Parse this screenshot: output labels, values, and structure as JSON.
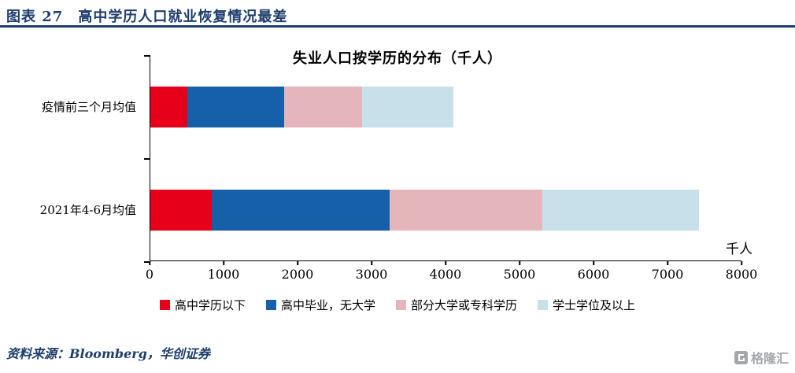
{
  "header": {
    "title": "图表 27　高中学历人口就业恢复情况最差"
  },
  "chart": {
    "title": "失业人口按学历的分布（千人）",
    "unit_label": "千人"
  },
  "chart_data": {
    "type": "bar",
    "orientation": "horizontal",
    "stacked": true,
    "title": "失业人口按学历的分布（千人）",
    "xlabel": "千人",
    "xlim": [
      0,
      8000
    ],
    "xticks": [
      0,
      1000,
      2000,
      3000,
      4000,
      5000,
      6000,
      7000,
      8000
    ],
    "grid": false,
    "legend_position": "bottom",
    "categories": [
      "疫情前三个月均值",
      "2021年4-6月均值"
    ],
    "series": [
      {
        "name": "高中学历以下",
        "color": "#e60019",
        "values": [
          500,
          830
        ]
      },
      {
        "name": "高中毕业，无大学",
        "color": "#1560a8",
        "values": [
          1310,
          2410
        ]
      },
      {
        "name": "部分大学或专科学历",
        "color": "#e4b6bc",
        "values": [
          1060,
          2060
        ]
      },
      {
        "name": "学士学位及以上",
        "color": "#c7e0ea",
        "values": [
          1230,
          2120
        ]
      }
    ]
  },
  "footer": {
    "source": "资料来源：Bloomberg，华创证券",
    "logo_text": "格隆汇"
  }
}
